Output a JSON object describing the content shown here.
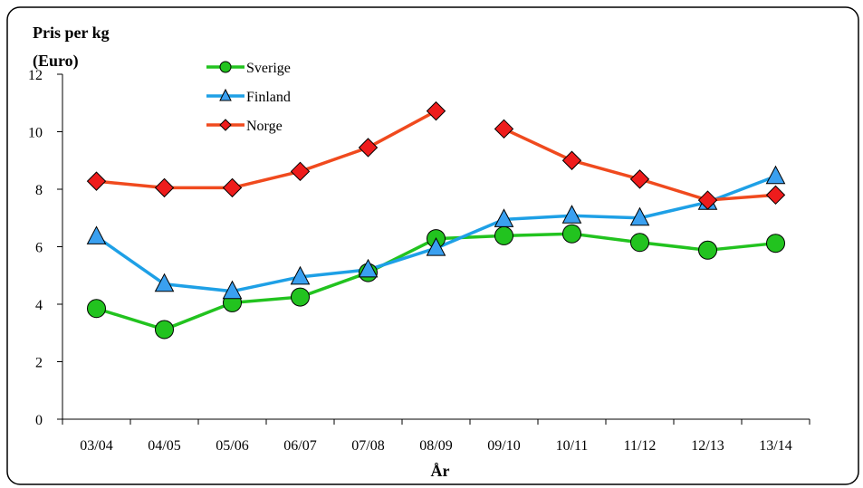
{
  "chart_data": {
    "type": "line",
    "ylabel": "Pris per kg",
    "ylabel_unit": "(Euro)",
    "xlabel": "År",
    "ylim": [
      0,
      12
    ],
    "yticks": [
      0,
      2,
      4,
      6,
      8,
      10,
      12
    ],
    "grid": false,
    "legend_position": "top-left",
    "categories": [
      "03/04",
      "04/05",
      "05/06",
      "06/07",
      "07/08",
      "08/09",
      "09/10",
      "10/11",
      "11/12",
      "12/13",
      "13/14"
    ],
    "series": [
      {
        "name": "Sverige",
        "color": "#22c31f",
        "marker": "circle",
        "marker_color": "#22c31f",
        "values": [
          3.85,
          3.12,
          4.05,
          4.25,
          5.1,
          6.28,
          6.38,
          6.45,
          6.15,
          5.88,
          6.12
        ]
      },
      {
        "name": "Finland",
        "color": "#1ea0e6",
        "marker": "triangle",
        "marker_color": "#3aa0f0",
        "values": [
          6.35,
          4.7,
          4.45,
          4.95,
          5.2,
          5.95,
          6.95,
          7.08,
          7.0,
          7.55,
          8.45
        ]
      },
      {
        "name": "Norge",
        "color": "#f04a1e",
        "marker": "diamond",
        "marker_color": "#ee1c1c",
        "values": [
          8.28,
          8.05,
          8.05,
          8.62,
          9.45,
          10.72,
          10.1,
          9.0,
          8.35,
          7.62,
          7.8
        ]
      }
    ]
  }
}
